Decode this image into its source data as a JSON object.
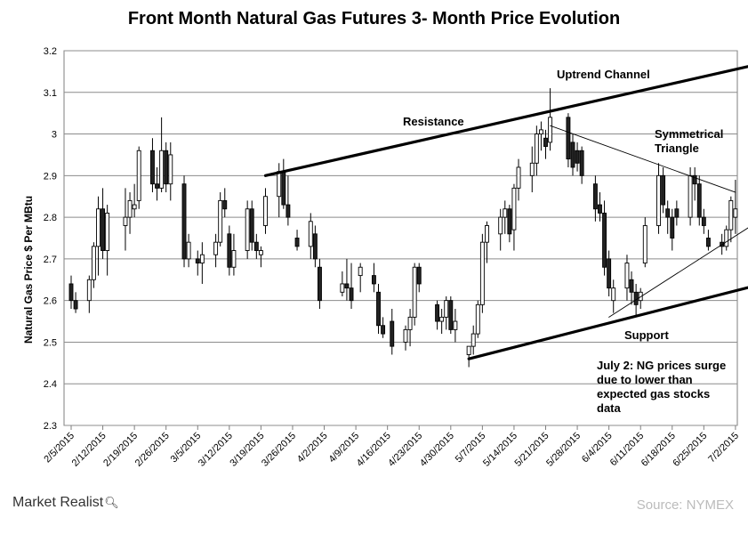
{
  "brand": {
    "name": "Market Realist",
    "icon": "magnifier-icon"
  },
  "source": "Source: NYMEX",
  "chart_data": {
    "type": "candlestick",
    "title": "Front Month Natural Gas Futures 3- Month Price Evolution",
    "xlabel": "",
    "ylabel": "Natural Gas Price $ Per MBtu",
    "ylim": [
      2.3,
      3.2
    ],
    "yticks": [
      "2.3",
      "2.4",
      "2.5",
      "2.6",
      "2.7",
      "2.8",
      "2.9",
      "3",
      "3.1",
      "3.2"
    ],
    "xticks": [
      "2/5/2015",
      "2/12/2015",
      "2/19/2015",
      "2/26/2015",
      "3/5/2015",
      "3/12/2015",
      "3/19/2015",
      "3/26/2015",
      "4/2/2015",
      "4/9/2015",
      "4/16/2015",
      "4/23/2015",
      "4/30/2015",
      "5/7/2015",
      "5/14/2015",
      "5/21/2015",
      "5/28/2015",
      "6/4/2015",
      "6/11/2015",
      "6/18/2015",
      "6/25/2015",
      "7/2/2015"
    ],
    "grid": "horizontal",
    "candles": [
      {
        "date": "2015-02-05",
        "open": 2.64,
        "high": 2.66,
        "low": 2.58,
        "close": 2.6
      },
      {
        "date": "2015-02-06",
        "open": 2.6,
        "high": 2.62,
        "low": 2.57,
        "close": 2.58
      },
      {
        "date": "2015-02-09",
        "open": 2.6,
        "high": 2.66,
        "low": 2.57,
        "close": 2.65
      },
      {
        "date": "2015-02-10",
        "open": 2.65,
        "high": 2.74,
        "low": 2.63,
        "close": 2.73
      },
      {
        "date": "2015-02-11",
        "open": 2.73,
        "high": 2.85,
        "low": 2.66,
        "close": 2.82
      },
      {
        "date": "2015-02-12",
        "open": 2.82,
        "high": 2.87,
        "low": 2.7,
        "close": 2.72
      },
      {
        "date": "2015-02-13",
        "open": 2.72,
        "high": 2.83,
        "low": 2.66,
        "close": 2.81
      },
      {
        "date": "2015-02-17",
        "open": 2.78,
        "high": 2.87,
        "low": 2.72,
        "close": 2.8
      },
      {
        "date": "2015-02-18",
        "open": 2.8,
        "high": 2.86,
        "low": 2.76,
        "close": 2.84
      },
      {
        "date": "2015-02-19",
        "open": 2.82,
        "high": 2.88,
        "low": 2.8,
        "close": 2.83
      },
      {
        "date": "2015-02-20",
        "open": 2.84,
        "high": 2.97,
        "low": 2.82,
        "close": 2.96
      },
      {
        "date": "2015-02-23",
        "open": 2.96,
        "high": 2.99,
        "low": 2.86,
        "close": 2.88
      },
      {
        "date": "2015-02-24",
        "open": 2.88,
        "high": 2.92,
        "low": 2.84,
        "close": 2.87
      },
      {
        "date": "2015-02-25",
        "open": 2.87,
        "high": 3.04,
        "low": 2.86,
        "close": 2.96
      },
      {
        "date": "2015-02-26",
        "open": 2.96,
        "high": 2.98,
        "low": 2.86,
        "close": 2.88
      },
      {
        "date": "2015-02-27",
        "open": 2.88,
        "high": 2.98,
        "low": 2.84,
        "close": 2.95
      },
      {
        "date": "2015-03-02",
        "open": 2.88,
        "high": 2.9,
        "low": 2.68,
        "close": 2.7
      },
      {
        "date": "2015-03-03",
        "open": 2.7,
        "high": 2.76,
        "low": 2.68,
        "close": 2.74
      },
      {
        "date": "2015-03-05",
        "open": 2.7,
        "high": 2.72,
        "low": 2.66,
        "close": 2.69
      },
      {
        "date": "2015-03-06",
        "open": 2.69,
        "high": 2.74,
        "low": 2.64,
        "close": 2.71
      },
      {
        "date": "2015-03-09",
        "open": 2.71,
        "high": 2.76,
        "low": 2.68,
        "close": 2.74
      },
      {
        "date": "2015-03-10",
        "open": 2.74,
        "high": 2.86,
        "low": 2.73,
        "close": 2.84
      },
      {
        "date": "2015-03-11",
        "open": 2.84,
        "high": 2.87,
        "low": 2.8,
        "close": 2.82
      },
      {
        "date": "2015-03-12",
        "open": 2.76,
        "high": 2.78,
        "low": 2.66,
        "close": 2.68
      },
      {
        "date": "2015-03-13",
        "open": 2.68,
        "high": 2.76,
        "low": 2.66,
        "close": 2.72
      },
      {
        "date": "2015-03-16",
        "open": 2.72,
        "high": 2.84,
        "low": 2.7,
        "close": 2.82
      },
      {
        "date": "2015-03-17",
        "open": 2.82,
        "high": 2.84,
        "low": 2.72,
        "close": 2.74
      },
      {
        "date": "2015-03-18",
        "open": 2.74,
        "high": 2.76,
        "low": 2.7,
        "close": 2.72
      },
      {
        "date": "2015-03-19",
        "open": 2.71,
        "high": 2.73,
        "low": 2.68,
        "close": 2.72
      },
      {
        "date": "2015-03-20",
        "open": 2.78,
        "high": 2.87,
        "low": 2.76,
        "close": 2.85
      },
      {
        "date": "2015-03-23",
        "open": 2.85,
        "high": 2.93,
        "low": 2.8,
        "close": 2.91
      },
      {
        "date": "2015-03-24",
        "open": 2.91,
        "high": 2.94,
        "low": 2.82,
        "close": 2.83
      },
      {
        "date": "2015-03-25",
        "open": 2.83,
        "high": 2.9,
        "low": 2.78,
        "close": 2.8
      },
      {
        "date": "2015-03-27",
        "open": 2.75,
        "high": 2.77,
        "low": 2.72,
        "close": 2.73
      },
      {
        "date": "2015-03-30",
        "open": 2.73,
        "high": 2.81,
        "low": 2.7,
        "close": 2.79
      },
      {
        "date": "2015-03-31",
        "open": 2.76,
        "high": 2.78,
        "low": 2.68,
        "close": 2.7
      },
      {
        "date": "2015-04-01",
        "open": 2.68,
        "high": 2.7,
        "low": 2.58,
        "close": 2.6
      },
      {
        "date": "2015-04-06",
        "open": 2.62,
        "high": 2.67,
        "low": 2.61,
        "close": 2.64
      },
      {
        "date": "2015-04-07",
        "open": 2.64,
        "high": 2.7,
        "low": 2.6,
        "close": 2.63
      },
      {
        "date": "2015-04-08",
        "open": 2.63,
        "high": 2.69,
        "low": 2.58,
        "close": 2.6
      },
      {
        "date": "2015-04-10",
        "open": 2.66,
        "high": 2.69,
        "low": 2.62,
        "close": 2.68
      },
      {
        "date": "2015-04-13",
        "open": 2.66,
        "high": 2.69,
        "low": 2.62,
        "close": 2.64
      },
      {
        "date": "2015-04-14",
        "open": 2.62,
        "high": 2.64,
        "low": 2.52,
        "close": 2.54
      },
      {
        "date": "2015-04-15",
        "open": 2.54,
        "high": 2.56,
        "low": 2.51,
        "close": 2.52
      },
      {
        "date": "2015-04-17",
        "open": 2.55,
        "high": 2.58,
        "low": 2.47,
        "close": 2.49
      },
      {
        "date": "2015-04-20",
        "open": 2.5,
        "high": 2.54,
        "low": 2.48,
        "close": 2.53
      },
      {
        "date": "2015-04-21",
        "open": 2.53,
        "high": 2.58,
        "low": 2.49,
        "close": 2.56
      },
      {
        "date": "2015-04-22",
        "open": 2.56,
        "high": 2.69,
        "low": 2.54,
        "close": 2.68
      },
      {
        "date": "2015-04-23",
        "open": 2.68,
        "high": 2.69,
        "low": 2.62,
        "close": 2.64
      },
      {
        "date": "2015-04-27",
        "open": 2.59,
        "high": 2.6,
        "low": 2.53,
        "close": 2.55
      },
      {
        "date": "2015-04-28",
        "open": 2.55,
        "high": 2.58,
        "low": 2.52,
        "close": 2.56
      },
      {
        "date": "2015-04-29",
        "open": 2.56,
        "high": 2.61,
        "low": 2.53,
        "close": 2.6
      },
      {
        "date": "2015-04-30",
        "open": 2.6,
        "high": 2.61,
        "low": 2.52,
        "close": 2.53
      },
      {
        "date": "2015-05-01",
        "open": 2.53,
        "high": 2.58,
        "low": 2.5,
        "close": 2.55
      },
      {
        "date": "2015-05-04",
        "open": 2.47,
        "high": 2.49,
        "low": 2.44,
        "close": 2.49
      },
      {
        "date": "2015-05-05",
        "open": 2.49,
        "high": 2.54,
        "low": 2.47,
        "close": 2.52
      },
      {
        "date": "2015-05-06",
        "open": 2.52,
        "high": 2.6,
        "low": 2.51,
        "close": 2.59
      },
      {
        "date": "2015-05-07",
        "open": 2.59,
        "high": 2.76,
        "low": 2.57,
        "close": 2.74
      },
      {
        "date": "2015-05-08",
        "open": 2.74,
        "high": 2.79,
        "low": 2.69,
        "close": 2.78
      },
      {
        "date": "2015-05-11",
        "open": 2.76,
        "high": 2.82,
        "low": 2.72,
        "close": 2.8
      },
      {
        "date": "2015-05-12",
        "open": 2.8,
        "high": 2.84,
        "low": 2.76,
        "close": 2.82
      },
      {
        "date": "2015-05-13",
        "open": 2.82,
        "high": 2.83,
        "low": 2.74,
        "close": 2.76
      },
      {
        "date": "2015-05-14",
        "open": 2.77,
        "high": 2.88,
        "low": 2.72,
        "close": 2.87
      },
      {
        "date": "2015-05-15",
        "open": 2.87,
        "high": 2.94,
        "low": 2.84,
        "close": 2.92
      },
      {
        "date": "2015-05-18",
        "open": 2.9,
        "high": 2.97,
        "low": 2.86,
        "close": 2.93
      },
      {
        "date": "2015-05-19",
        "open": 2.93,
        "high": 3.02,
        "low": 2.9,
        "close": 3.0
      },
      {
        "date": "2015-05-20",
        "open": 3.0,
        "high": 3.03,
        "low": 2.96,
        "close": 3.01
      },
      {
        "date": "2015-05-21",
        "open": 2.99,
        "high": 3.01,
        "low": 2.94,
        "close": 2.97
      },
      {
        "date": "2015-05-22",
        "open": 2.98,
        "high": 3.11,
        "low": 2.96,
        "close": 3.04
      },
      {
        "date": "2015-05-26",
        "open": 3.04,
        "high": 3.05,
        "low": 2.92,
        "close": 2.94
      },
      {
        "date": "2015-05-27",
        "open": 2.98,
        "high": 3.0,
        "low": 2.9,
        "close": 2.92
      },
      {
        "date": "2015-05-28",
        "open": 2.96,
        "high": 2.98,
        "low": 2.91,
        "close": 2.93
      },
      {
        "date": "2015-05-29",
        "open": 2.96,
        "high": 2.97,
        "low": 2.88,
        "close": 2.9
      },
      {
        "date": "2015-06-01",
        "open": 2.88,
        "high": 2.9,
        "low": 2.79,
        "close": 2.82
      },
      {
        "date": "2015-06-02",
        "open": 2.83,
        "high": 2.86,
        "low": 2.79,
        "close": 2.81
      },
      {
        "date": "2015-06-03",
        "open": 2.81,
        "high": 2.84,
        "low": 2.66,
        "close": 2.68
      },
      {
        "date": "2015-06-04",
        "open": 2.7,
        "high": 2.72,
        "low": 2.61,
        "close": 2.63
      },
      {
        "date": "2015-06-05",
        "open": 2.6,
        "high": 2.65,
        "low": 2.57,
        "close": 2.63
      },
      {
        "date": "2015-06-08",
        "open": 2.63,
        "high": 2.71,
        "low": 2.6,
        "close": 2.69
      },
      {
        "date": "2015-06-09",
        "open": 2.65,
        "high": 2.67,
        "low": 2.59,
        "close": 2.62
      },
      {
        "date": "2015-06-10",
        "open": 2.62,
        "high": 2.64,
        "low": 2.56,
        "close": 2.59
      },
      {
        "date": "2015-06-11",
        "open": 2.6,
        "high": 2.63,
        "low": 2.58,
        "close": 2.62
      },
      {
        "date": "2015-06-12",
        "open": 2.69,
        "high": 2.8,
        "low": 2.68,
        "close": 2.78
      },
      {
        "date": "2015-06-15",
        "open": 2.78,
        "high": 2.93,
        "low": 2.76,
        "close": 2.9
      },
      {
        "date": "2015-06-16",
        "open": 2.9,
        "high": 2.92,
        "low": 2.81,
        "close": 2.83
      },
      {
        "date": "2015-06-17",
        "open": 2.82,
        "high": 2.84,
        "low": 2.76,
        "close": 2.8
      },
      {
        "date": "2015-06-18",
        "open": 2.8,
        "high": 2.82,
        "low": 2.72,
        "close": 2.75
      },
      {
        "date": "2015-06-19",
        "open": 2.82,
        "high": 2.84,
        "low": 2.78,
        "close": 2.8
      },
      {
        "date": "2015-06-22",
        "open": 2.8,
        "high": 2.92,
        "low": 2.78,
        "close": 2.9
      },
      {
        "date": "2015-06-23",
        "open": 2.9,
        "high": 2.92,
        "low": 2.84,
        "close": 2.88
      },
      {
        "date": "2015-06-24",
        "open": 2.88,
        "high": 2.9,
        "low": 2.78,
        "close": 2.8
      },
      {
        "date": "2015-06-25",
        "open": 2.8,
        "high": 2.82,
        "low": 2.76,
        "close": 2.78
      },
      {
        "date": "2015-06-26",
        "open": 2.75,
        "high": 2.77,
        "low": 2.72,
        "close": 2.73
      },
      {
        "date": "2015-06-29",
        "open": 2.74,
        "high": 2.76,
        "low": 2.71,
        "close": 2.73
      },
      {
        "date": "2015-06-30",
        "open": 2.73,
        "high": 2.78,
        "low": 2.72,
        "close": 2.77
      },
      {
        "date": "2015-07-01",
        "open": 2.77,
        "high": 2.85,
        "low": 2.74,
        "close": 2.84
      },
      {
        "date": "2015-07-02",
        "open": 2.8,
        "high": 2.89,
        "low": 2.76,
        "close": 2.82
      }
    ],
    "annotations": {
      "uptrend_channel": "Uptrend Channel",
      "resistance": "Resistance",
      "symmetrical_line1": "Symmetrical",
      "symmetrical_line2": "Triangle",
      "support": "Support",
      "note": [
        "July 2: NG prices surge",
        "due to lower than",
        "expected gas stocks",
        "data"
      ]
    },
    "trendlines": [
      {
        "name": "Uptrend Channel",
        "from": {
          "date": "2015-03-20",
          "y": 2.9
        },
        "to": {
          "date": "2015-07-08",
          "y": 3.17
        },
        "weight": "bold"
      },
      {
        "name": "Support",
        "from": {
          "date": "2015-05-04",
          "y": 2.46
        },
        "to": {
          "date": "2015-07-08",
          "y": 2.64
        },
        "weight": "bold"
      },
      {
        "name": "Triangle upper",
        "from": {
          "date": "2015-05-22",
          "y": 3.02
        },
        "to": {
          "date": "2015-07-02",
          "y": 2.86
        },
        "weight": "thin"
      },
      {
        "name": "Triangle lower",
        "from": {
          "date": "2015-06-04",
          "y": 2.56
        },
        "to": {
          "date": "2015-07-07",
          "y": 2.79
        },
        "weight": "thin"
      }
    ]
  }
}
